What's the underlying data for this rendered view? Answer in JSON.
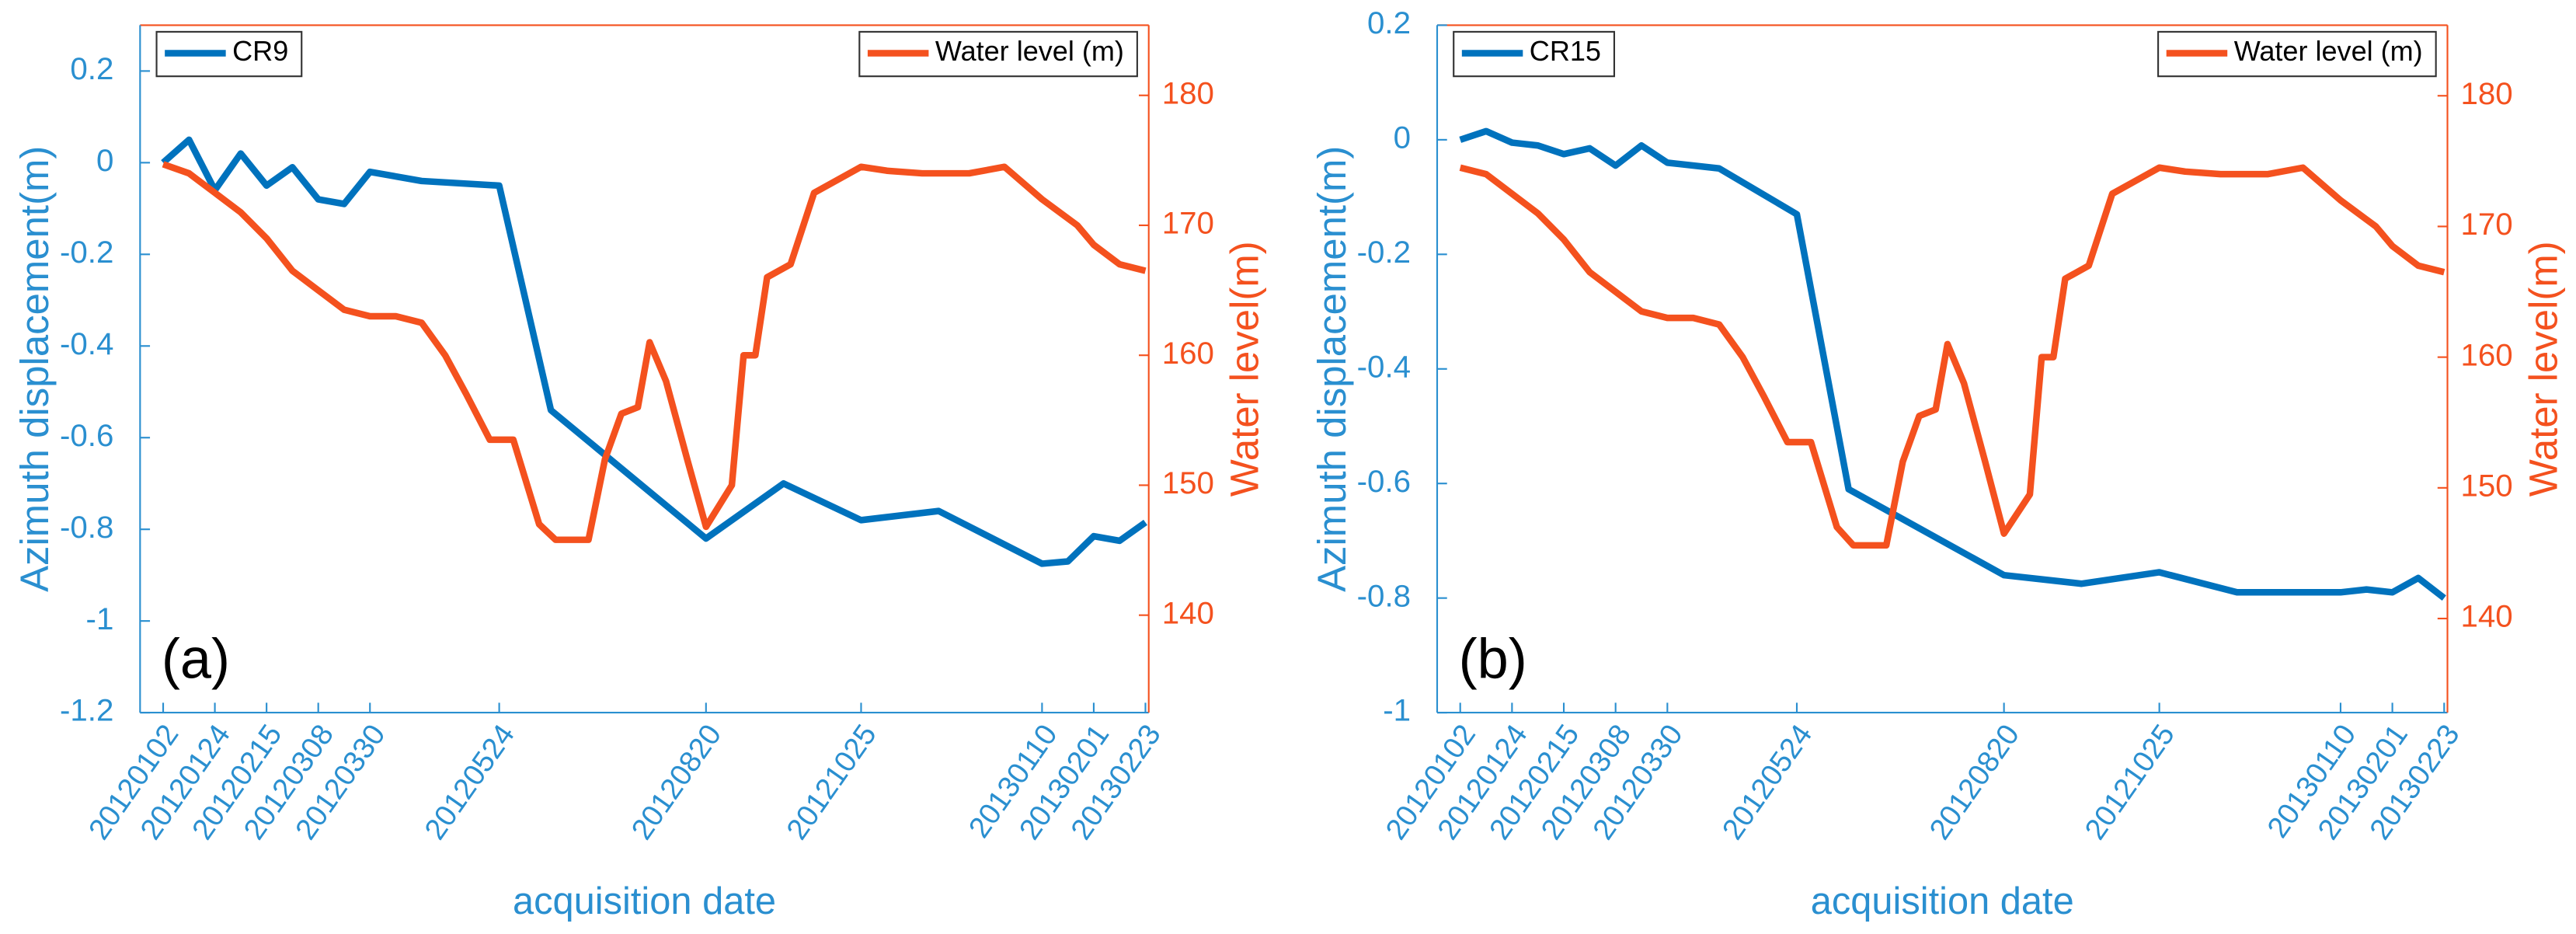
{
  "chart_data": [
    {
      "type": "line",
      "panel_label": "(a)",
      "xlabel": "acquisition date",
      "ylabel": "Azimuth displacement(m)",
      "y2label": "Water level(m)",
      "xlim": [
        "20120102",
        "20130223"
      ],
      "xticks": [
        "20120102",
        "20120124",
        "20120215",
        "20120308",
        "20120330",
        "20120524",
        "20120820",
        "20121025",
        "20130110",
        "20130201",
        "20130223"
      ],
      "ylim": [
        -1.2,
        0.3
      ],
      "yticks": [
        -1.2,
        -1,
        -0.8,
        -0.6,
        -0.4,
        -0.2,
        0,
        0.2
      ],
      "y2lim": [
        132.5,
        185.4
      ],
      "y2ticks": [
        140,
        150,
        160,
        170,
        180
      ],
      "series": [
        {
          "name": "CR9",
          "color": "#0072bd",
          "legend": "upper left",
          "x": [
            "20120102",
            "20120113",
            "20120124",
            "20120204",
            "20120215",
            "20120226",
            "20120308",
            "20120319",
            "20120330",
            "20120421",
            "20120524",
            "20120615",
            "20120820",
            "20120922",
            "20121025",
            "20121127",
            "20130110",
            "20130121",
            "20130201",
            "20130212",
            "20130223"
          ],
          "values": [
            0,
            0.05,
            -0.06,
            0.02,
            -0.05,
            -0.01,
            -0.08,
            -0.09,
            -0.02,
            -0.04,
            -0.05,
            -0.54,
            -0.82,
            -0.7,
            -0.78,
            -0.76,
            -0.875,
            -0.87,
            -0.815,
            -0.825,
            -0.785
          ]
        },
        {
          "name": "Water level (m)",
          "color": "#f4511e",
          "axis": "y2",
          "legend": "upper right",
          "x": [
            "20120102",
            "20120113",
            "20120124",
            "20120204",
            "20120215",
            "20120226",
            "20120308",
            "20120319",
            "20120330",
            "20120410",
            "20120421",
            "20120501",
            "20120510",
            "20120520",
            "20120530",
            "20120610",
            "20120617",
            "20120625",
            "20120701",
            "20120708",
            "20120715",
            "20120722",
            "20120727",
            "20120803",
            "20120812",
            "20120820",
            "20120831",
            "20120905",
            "20120910",
            "20120915",
            "20120925",
            "20121005",
            "20121015",
            "20121025",
            "20121105",
            "20121120",
            "20121210",
            "20121225",
            "20130110",
            "20130125",
            "20130201",
            "20130212",
            "20130223"
          ],
          "values": [
            174.7,
            174,
            172.5,
            171,
            169,
            166.5,
            165,
            163.5,
            163,
            163,
            162.5,
            160,
            157,
            153.5,
            153.5,
            147,
            145.8,
            145.8,
            145.8,
            152,
            155.5,
            156,
            161,
            158,
            152,
            146.8,
            150,
            160,
            160,
            166,
            167,
            172.5,
            173.5,
            174.5,
            174.2,
            174,
            174,
            174.5,
            172,
            170,
            168.5,
            167,
            166.5
          ]
        }
      ]
    },
    {
      "type": "line",
      "panel_label": "(b)",
      "xlabel": "acquisition date",
      "ylabel": "Azimuth displacement(m)",
      "y2label": "Water level(m)",
      "xlim": [
        "20120102",
        "20130223"
      ],
      "xticks": [
        "20120102",
        "20120124",
        "20120215",
        "20120308",
        "20120330",
        "20120524",
        "20120820",
        "20121025",
        "20130110",
        "20130201",
        "20130223"
      ],
      "ylim": [
        -1,
        0.2
      ],
      "yticks": [
        -1,
        -0.8,
        -0.6,
        -0.4,
        -0.2,
        0,
        0.2
      ],
      "y2lim": [
        132.8,
        185.4
      ],
      "y2ticks": [
        140,
        150,
        160,
        170,
        180
      ],
      "series": [
        {
          "name": "CR15",
          "color": "#0072bd",
          "legend": "upper left",
          "x": [
            "20120102",
            "20120113",
            "20120124",
            "20120204",
            "20120215",
            "20120226",
            "20120308",
            "20120319",
            "20120330",
            "20120421",
            "20120524",
            "20120615",
            "20120820",
            "20120922",
            "20121025",
            "20121127",
            "20130110",
            "20130121",
            "20130201",
            "20130212",
            "20130223"
          ],
          "values": [
            0,
            0.015,
            -0.005,
            -0.01,
            -0.025,
            -0.015,
            -0.045,
            -0.01,
            -0.04,
            -0.05,
            -0.13,
            -0.61,
            -0.76,
            -0.775,
            -0.755,
            -0.79,
            -0.79,
            -0.785,
            -0.79,
            -0.765,
            -0.8
          ]
        },
        {
          "name": "Water level (m)",
          "color": "#f4511e",
          "axis": "y2",
          "legend": "upper right",
          "x": [
            "20120102",
            "20120113",
            "20120124",
            "20120204",
            "20120215",
            "20120226",
            "20120308",
            "20120319",
            "20120330",
            "20120410",
            "20120421",
            "20120501",
            "20120510",
            "20120520",
            "20120530",
            "20120610",
            "20120617",
            "20120625",
            "20120701",
            "20120708",
            "20120715",
            "20120722",
            "20120727",
            "20120803",
            "20120812",
            "20120820",
            "20120831",
            "20120905",
            "20120910",
            "20120915",
            "20120925",
            "20121005",
            "20121015",
            "20121025",
            "20121105",
            "20121120",
            "20121210",
            "20121225",
            "20130110",
            "20130125",
            "20130201",
            "20130212",
            "20130223"
          ],
          "values": [
            174.5,
            174,
            172.5,
            171,
            169,
            166.5,
            165,
            163.5,
            163,
            163,
            162.5,
            160,
            157,
            153.5,
            153.5,
            147,
            145.6,
            145.6,
            145.6,
            152,
            155.5,
            156,
            161,
            158,
            152,
            146.5,
            149.5,
            160,
            160,
            166,
            167,
            172.5,
            173.5,
            174.5,
            174.2,
            174,
            174,
            174.5,
            172,
            170,
            168.5,
            167,
            166.5
          ]
        }
      ]
    }
  ]
}
